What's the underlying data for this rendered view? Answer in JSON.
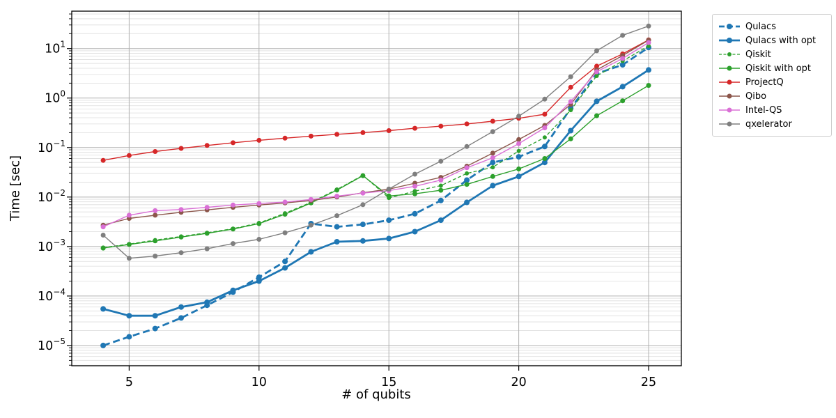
{
  "figure": {
    "background": "#ffffff",
    "axes_edge_color": "#000000",
    "grid_major_color": "#b0b0b0",
    "grid_minor_color": "#dddddd"
  },
  "chart_data": {
    "type": "line",
    "title": "",
    "xlabel": "# of qubits",
    "ylabel": "Time [sec]",
    "y_scale": "log",
    "grid": true,
    "legend_position": "outside-top-right",
    "x": [
      4,
      5,
      6,
      7,
      8,
      9,
      10,
      11,
      12,
      13,
      14,
      15,
      16,
      17,
      18,
      19,
      20,
      21,
      22,
      23,
      24,
      25
    ],
    "x_ticks": [
      5,
      10,
      15,
      20,
      25
    ],
    "y_tick_exponents": [
      1,
      0,
      -1,
      -2,
      -3,
      -4,
      -5
    ],
    "xlim": [
      2.79,
      26.26
    ],
    "ylim": [
      3.9e-06,
      57
    ],
    "series": [
      {
        "name": "Qulacs",
        "color": "#1f77b4",
        "line": "dashed",
        "stroke_width": 2.8,
        "marker_size": 4,
        "values": [
          1e-05,
          1.5e-05,
          2.2e-05,
          3.6e-05,
          6.5e-05,
          0.00012,
          0.00024,
          0.0005,
          0.0029,
          0.0025,
          0.0028,
          0.0034,
          0.0046,
          0.0085,
          0.022,
          0.05,
          0.065,
          0.105,
          0.62,
          3.1,
          4.7,
          10.5
        ]
      },
      {
        "name": "Qulacs with opt",
        "color": "#1f77b4",
        "line": "solid",
        "stroke_width": 2.8,
        "marker_size": 4,
        "values": [
          5.5e-05,
          4e-05,
          4e-05,
          6e-05,
          7.5e-05,
          0.00013,
          0.0002,
          0.00037,
          0.00078,
          0.00125,
          0.0013,
          0.00145,
          0.002,
          0.0034,
          0.0078,
          0.017,
          0.026,
          0.05,
          0.22,
          0.86,
          1.7,
          3.7
        ]
      },
      {
        "name": "Qiskit",
        "color": "#2ca02c",
        "line": "dashed",
        "stroke_width": 1.3,
        "marker_size": 3,
        "values": [
          0.00095,
          0.00112,
          0.00135,
          0.0016,
          0.0019,
          0.0023,
          0.003,
          0.0047,
          0.0078,
          0.0142,
          0.0275,
          0.0096,
          0.0132,
          0.017,
          0.03,
          0.04,
          0.085,
          0.16,
          0.57,
          2.8,
          5.6,
          11.3
        ]
      },
      {
        "name": "Qiskit with opt",
        "color": "#2ca02c",
        "line": "solid",
        "stroke_width": 1.4,
        "marker_size": 3.5,
        "values": [
          0.00093,
          0.0011,
          0.0013,
          0.00155,
          0.00185,
          0.00225,
          0.0029,
          0.0045,
          0.0076,
          0.0138,
          0.027,
          0.0105,
          0.0116,
          0.0137,
          0.018,
          0.026,
          0.037,
          0.06,
          0.15,
          0.44,
          0.88,
          1.8
        ]
      },
      {
        "name": "ProjectQ",
        "color": "#d62728",
        "line": "solid",
        "stroke_width": 1.4,
        "marker_size": 3.5,
        "values": [
          0.055,
          0.069,
          0.083,
          0.096,
          0.11,
          0.125,
          0.14,
          0.155,
          0.17,
          0.185,
          0.2,
          0.22,
          0.245,
          0.27,
          0.3,
          0.34,
          0.39,
          0.47,
          1.65,
          4.4,
          7.8,
          15.0
        ]
      },
      {
        "name": "Qibo",
        "color": "#8c564b",
        "line": "solid",
        "stroke_width": 1.4,
        "marker_size": 3.5,
        "values": [
          0.0027,
          0.0037,
          0.0043,
          0.0049,
          0.0055,
          0.0062,
          0.0069,
          0.0076,
          0.0085,
          0.01,
          0.0122,
          0.0145,
          0.019,
          0.025,
          0.042,
          0.077,
          0.145,
          0.28,
          0.74,
          3.7,
          7.2,
          14.8
        ]
      },
      {
        "name": "Intel-QS",
        "color": "#da70d6",
        "line": "solid",
        "stroke_width": 1.4,
        "marker_size": 3.5,
        "values": [
          0.0025,
          0.0043,
          0.0053,
          0.0056,
          0.0062,
          0.0069,
          0.0074,
          0.0079,
          0.0089,
          0.0104,
          0.012,
          0.0135,
          0.0165,
          0.022,
          0.039,
          0.062,
          0.12,
          0.25,
          0.85,
          3.4,
          6.3,
          13.2
        ]
      },
      {
        "name": "qxelerator",
        "color": "#7f7f7f",
        "line": "solid",
        "stroke_width": 1.4,
        "marker_size": 3.5,
        "values": [
          0.0017,
          0.00058,
          0.00064,
          0.00075,
          0.0009,
          0.00115,
          0.0014,
          0.0019,
          0.0027,
          0.0042,
          0.007,
          0.0145,
          0.029,
          0.053,
          0.105,
          0.21,
          0.43,
          0.95,
          2.7,
          9.0,
          18.5,
          28.5
        ]
      }
    ]
  }
}
